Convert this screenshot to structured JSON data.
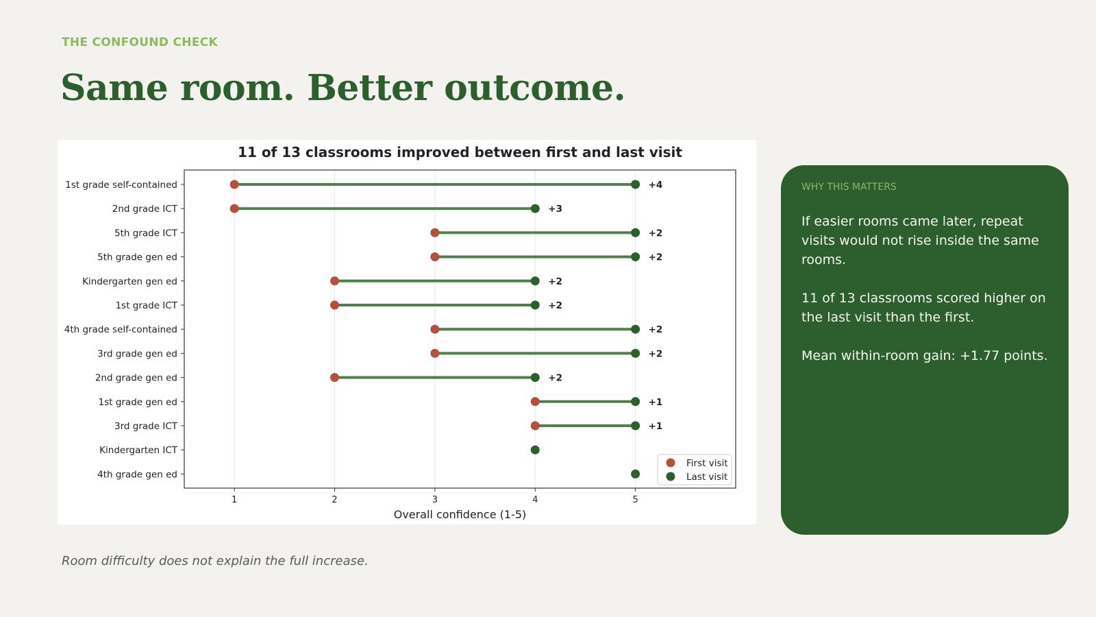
{
  "header": {
    "eyebrow": "THE CONFOUND CHECK",
    "title": "Same room. Better outcome."
  },
  "panel": {
    "eyebrow": "WHY THIS MATTERS",
    "paragraphs": [
      "If easier rooms came later, repeat visits would not rise inside the same rooms.",
      "11 of 13 classrooms scored higher on the last visit than the first.",
      "Mean within-room gain: +1.77 points."
    ]
  },
  "footnote": "Room difficulty does not explain the full increase.",
  "colors": {
    "first": "#b5503f",
    "last": "#2d5e2d",
    "connector": "#4f7f4c",
    "accent": "#8db85f"
  },
  "chart_data": {
    "type": "dumbbell",
    "title": "11 of 13 classrooms improved between first and last visit",
    "xlabel": "Overall confidence (1-5)",
    "xlim": [
      0.5,
      6.0
    ],
    "xticks": [
      1,
      2,
      3,
      4,
      5
    ],
    "grid": "vertical",
    "legend_position": "bottom-right",
    "series": [
      {
        "name": "First visit",
        "color": "#b5503f"
      },
      {
        "name": "Last visit",
        "color": "#2d5e2d"
      }
    ],
    "rows": [
      {
        "label": "1st grade self-contained",
        "first": 1,
        "last": 5,
        "delta": "+4"
      },
      {
        "label": "2nd grade ICT",
        "first": 1,
        "last": 4,
        "delta": "+3"
      },
      {
        "label": "5th grade ICT",
        "first": 3,
        "last": 5,
        "delta": "+2"
      },
      {
        "label": "5th grade gen ed",
        "first": 3,
        "last": 5,
        "delta": "+2"
      },
      {
        "label": "Kindergarten gen ed",
        "first": 2,
        "last": 4,
        "delta": "+2"
      },
      {
        "label": "1st grade ICT",
        "first": 2,
        "last": 4,
        "delta": "+2"
      },
      {
        "label": "4th grade self-contained",
        "first": 3,
        "last": 5,
        "delta": "+2"
      },
      {
        "label": "3rd grade gen ed",
        "first": 3,
        "last": 5,
        "delta": "+2"
      },
      {
        "label": "2nd grade gen ed",
        "first": 2,
        "last": 4,
        "delta": "+2"
      },
      {
        "label": "1st grade gen ed",
        "first": 4,
        "last": 5,
        "delta": "+1"
      },
      {
        "label": "3rd grade ICT",
        "first": 4,
        "last": 5,
        "delta": "+1"
      },
      {
        "label": "Kindergarten ICT",
        "first": 4,
        "last": 4,
        "delta": ""
      },
      {
        "label": "4th grade gen ed",
        "first": 5,
        "last": 5,
        "delta": ""
      }
    ]
  }
}
